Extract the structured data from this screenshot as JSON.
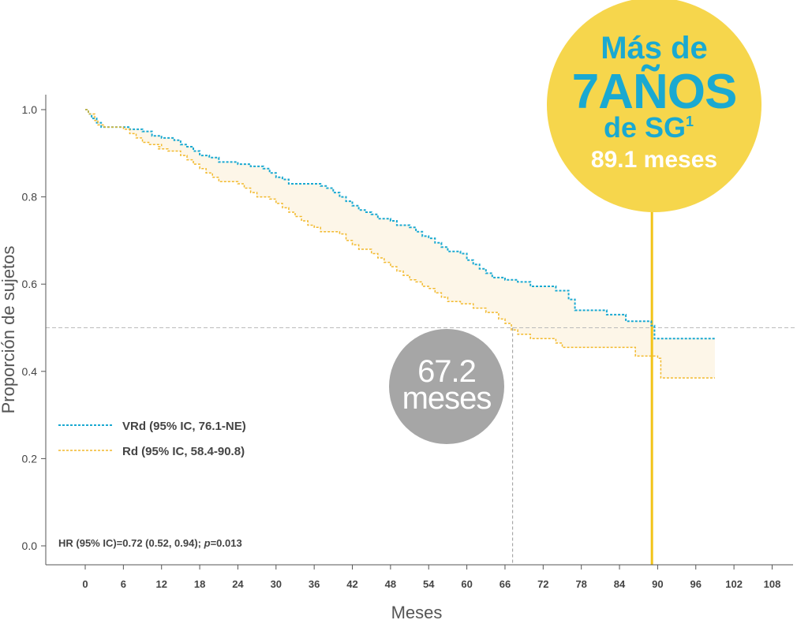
{
  "chart_data": {
    "type": "line",
    "xlabel": "Meses",
    "ylabel": "Proporción de sujetos",
    "xlim": [
      0,
      108
    ],
    "ylim": [
      0,
      1.0
    ],
    "x_ticks": [
      "0",
      "6",
      "12",
      "18",
      "24",
      "30",
      "36",
      "42",
      "48",
      "54",
      "60",
      "66",
      "72",
      "78",
      "84",
      "90",
      "96",
      "102",
      "108"
    ],
    "y_ticks": [
      "0.0",
      "0.2",
      "0.4",
      "0.6",
      "0.8",
      "1.0"
    ],
    "grid": false,
    "legend_position": "bottom-left",
    "series": [
      {
        "name": "VRd (95% IC, 76.1-NE)",
        "color": "#1aa9d1",
        "points": [
          [
            0,
            1.0
          ],
          [
            0.5,
            0.99
          ],
          [
            1,
            0.98
          ],
          [
            1.8,
            0.97
          ],
          [
            2.5,
            0.96
          ],
          [
            4,
            0.96
          ],
          [
            6,
            0.96
          ],
          [
            7,
            0.955
          ],
          [
            9,
            0.95
          ],
          [
            10.5,
            0.94
          ],
          [
            12,
            0.935
          ],
          [
            14,
            0.93
          ],
          [
            15,
            0.92
          ],
          [
            16,
            0.915
          ],
          [
            17,
            0.905
          ],
          [
            18,
            0.895
          ],
          [
            19.5,
            0.89
          ],
          [
            21,
            0.88
          ],
          [
            24,
            0.875
          ],
          [
            26,
            0.87
          ],
          [
            28,
            0.865
          ],
          [
            29,
            0.855
          ],
          [
            30,
            0.845
          ],
          [
            31,
            0.84
          ],
          [
            32,
            0.83
          ],
          [
            35,
            0.83
          ],
          [
            37,
            0.825
          ],
          [
            38,
            0.82
          ],
          [
            39,
            0.81
          ],
          [
            40,
            0.8
          ],
          [
            41,
            0.79
          ],
          [
            42,
            0.78
          ],
          [
            43,
            0.77
          ],
          [
            44,
            0.765
          ],
          [
            45,
            0.76
          ],
          [
            46,
            0.75
          ],
          [
            48,
            0.745
          ],
          [
            49,
            0.735
          ],
          [
            51,
            0.73
          ],
          [
            52,
            0.72
          ],
          [
            53,
            0.71
          ],
          [
            54,
            0.705
          ],
          [
            55,
            0.695
          ],
          [
            56,
            0.685
          ],
          [
            57,
            0.675
          ],
          [
            59,
            0.67
          ],
          [
            60,
            0.655
          ],
          [
            61,
            0.645
          ],
          [
            62,
            0.635
          ],
          [
            63,
            0.625
          ],
          [
            64,
            0.615
          ],
          [
            66,
            0.61
          ],
          [
            68,
            0.605
          ],
          [
            70,
            0.595
          ],
          [
            74,
            0.585
          ],
          [
            76,
            0.565
          ],
          [
            77,
            0.54
          ],
          [
            82,
            0.53
          ],
          [
            85,
            0.515
          ],
          [
            89,
            0.505
          ],
          [
            89.5,
            0.475
          ],
          [
            99,
            0.475
          ]
        ]
      },
      {
        "name": "Rd (95% IC, 58.4-90.8)",
        "color": "#f2b92c",
        "points": [
          [
            0,
            1.0
          ],
          [
            0.5,
            0.99
          ],
          [
            1.5,
            0.975
          ],
          [
            2,
            0.965
          ],
          [
            3,
            0.96
          ],
          [
            5,
            0.96
          ],
          [
            6,
            0.955
          ],
          [
            7,
            0.945
          ],
          [
            8,
            0.935
          ],
          [
            9,
            0.925
          ],
          [
            10,
            0.92
          ],
          [
            12,
            0.915
          ],
          [
            11.5,
            0.91
          ],
          [
            13,
            0.905
          ],
          [
            15,
            0.895
          ],
          [
            16,
            0.885
          ],
          [
            17,
            0.875
          ],
          [
            18,
            0.865
          ],
          [
            19,
            0.855
          ],
          [
            20,
            0.845
          ],
          [
            21,
            0.835
          ],
          [
            24,
            0.83
          ],
          [
            25,
            0.82
          ],
          [
            26,
            0.81
          ],
          [
            27,
            0.8
          ],
          [
            29,
            0.795
          ],
          [
            30,
            0.785
          ],
          [
            31,
            0.775
          ],
          [
            32,
            0.765
          ],
          [
            33,
            0.755
          ],
          [
            34,
            0.745
          ],
          [
            35,
            0.735
          ],
          [
            36,
            0.73
          ],
          [
            37,
            0.72
          ],
          [
            40,
            0.715
          ],
          [
            41,
            0.7
          ],
          [
            42,
            0.69
          ],
          [
            43,
            0.68
          ],
          [
            45,
            0.67
          ],
          [
            46,
            0.66
          ],
          [
            47,
            0.65
          ],
          [
            48,
            0.64
          ],
          [
            49,
            0.63
          ],
          [
            50,
            0.62
          ],
          [
            51,
            0.61
          ],
          [
            52,
            0.605
          ],
          [
            53,
            0.595
          ],
          [
            54,
            0.59
          ],
          [
            55,
            0.58
          ],
          [
            56,
            0.57
          ],
          [
            57,
            0.56
          ],
          [
            59,
            0.555
          ],
          [
            61,
            0.545
          ],
          [
            63,
            0.535
          ],
          [
            65,
            0.52
          ],
          [
            66,
            0.51
          ],
          [
            67,
            0.495
          ],
          [
            68,
            0.485
          ],
          [
            70,
            0.475
          ],
          [
            74,
            0.465
          ],
          [
            75,
            0.455
          ],
          [
            86,
            0.455
          ],
          [
            86.5,
            0.435
          ],
          [
            90,
            0.43
          ],
          [
            90.5,
            0.385
          ],
          [
            99,
            0.385
          ]
        ]
      }
    ],
    "reference_line_y": 0.5,
    "median_markers": [
      {
        "series": "Rd (95% IC, 58.4-90.8)",
        "x": 67.2
      },
      {
        "series": "VRd (95% IC, 76.1-NE)",
        "x": 89.1
      }
    ],
    "annotations": {
      "hr_text": "HR (95% IC)=0.72 (0.52, 0.94); ",
      "p_label": "p",
      "p_value": "=0.013",
      "gray_circle_line1": "67.2",
      "gray_circle_line2": "meses",
      "badge_line1": "Más de",
      "badge_line2": "7AÑOS",
      "badge_line3": "de SG",
      "badge_superscript": "1",
      "badge_line4": "89.1 meses"
    },
    "colors": {
      "vrd": "#1aa9d1",
      "rd": "#f2b92c",
      "band_fill": "#fdf6e8",
      "badge_fill": "#f6d64c",
      "badge_text_blue": "#1aa9d1",
      "badge_text_white": "#ffffff",
      "gray_circle": "#a6a6a6",
      "median_line_vrd": "#f2c318",
      "reference_line": "#bbbbbb",
      "axis": "#555555"
    }
  }
}
